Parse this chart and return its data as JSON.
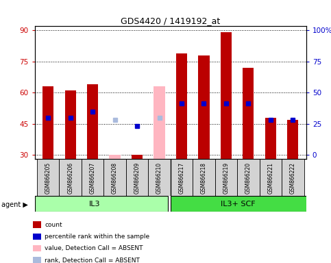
{
  "title": "GDS4420 / 1419192_at",
  "samples": [
    "GSM866205",
    "GSM866206",
    "GSM866207",
    "GSM866208",
    "GSM866209",
    "GSM866210",
    "GSM866217",
    "GSM866218",
    "GSM866219",
    "GSM866220",
    "GSM866221",
    "GSM866222"
  ],
  "group_labels": [
    "IL3",
    "IL3+ SCF"
  ],
  "group_colors": [
    "#AAFFAA",
    "#44DD44"
  ],
  "group_split": 6,
  "count_values": [
    63,
    61,
    64,
    null,
    30,
    null,
    79,
    78,
    89,
    72,
    48,
    47
  ],
  "rank_values": [
    48,
    48,
    51,
    null,
    44,
    null,
    55,
    55,
    55,
    55,
    47,
    47
  ],
  "absent_value": [
    null,
    null,
    null,
    30,
    null,
    63,
    null,
    null,
    null,
    null,
    null,
    null
  ],
  "absent_rank": [
    null,
    null,
    null,
    47,
    null,
    48,
    null,
    null,
    null,
    null,
    null,
    null
  ],
  "ylim": [
    28,
    92
  ],
  "yticks_left": [
    30,
    45,
    60,
    75,
    90
  ],
  "yticks_right_labels": [
    "0",
    "25",
    "50",
    "75",
    "100%"
  ],
  "ylabel_left_color": "#CC0000",
  "ylabel_right_color": "#0000CC",
  "bar_color": "#BB0000",
  "rank_color": "#0000CC",
  "absent_bar_color": "#FFB6C1",
  "absent_rank_color": "#AABBDD",
  "legend_items": [
    {
      "label": "count",
      "color": "#BB0000"
    },
    {
      "label": "percentile rank within the sample",
      "color": "#0000CC"
    },
    {
      "label": "value, Detection Call = ABSENT",
      "color": "#FFB6C1"
    },
    {
      "label": "rank, Detection Call = ABSENT",
      "color": "#AABBDD"
    }
  ]
}
